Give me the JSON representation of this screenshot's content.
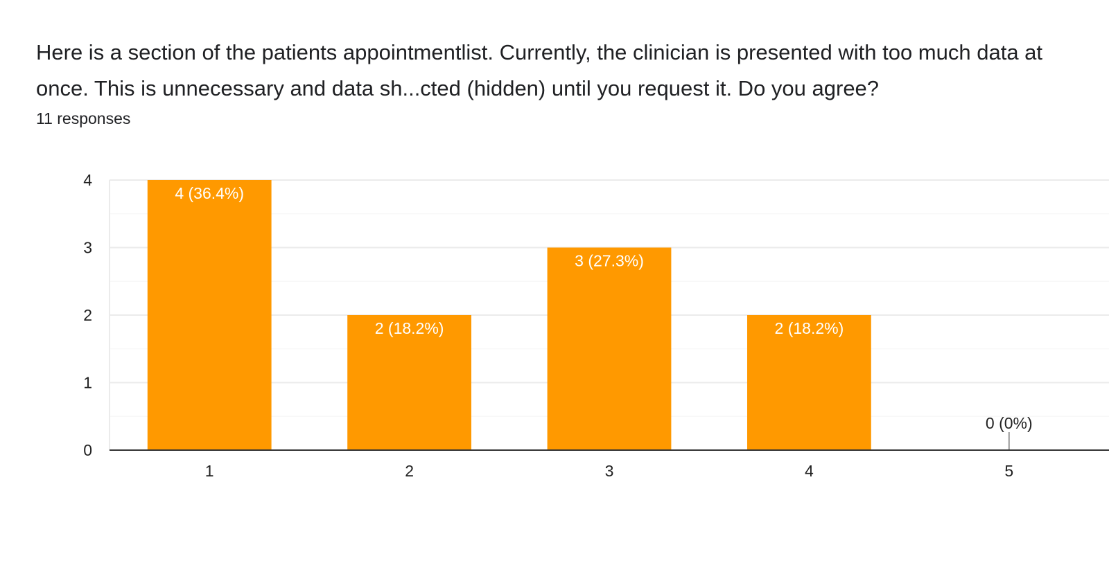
{
  "question": {
    "title": "Here is a section of the patients appointmentlist. Currently, the clinician is presented with too much data at once. This is unnecessary and data sh...cted (hidden) until you request it. Do you agree?",
    "responses": "11 responses"
  },
  "colors": {
    "bar": "#ff9900",
    "grid": "#ebebeb",
    "minor_grid": "#f5f5f5",
    "axis": "#333333",
    "label_inside": "#ffffff",
    "label_outside": "#222222",
    "zero_tick": "#999999"
  },
  "chart_data": {
    "type": "bar",
    "categories": [
      "1",
      "2",
      "3",
      "4",
      "5"
    ],
    "values": [
      4,
      2,
      3,
      2,
      0
    ],
    "data_labels": [
      "4 (36.4%)",
      "2 (18.2%)",
      "3 (27.3%)",
      "2 (18.2%)",
      "0 (0%)"
    ],
    "yticks": [
      "0",
      "1",
      "2",
      "3",
      "4"
    ],
    "ylim": [
      0,
      4
    ],
    "grid": true,
    "legend": "none",
    "title": "",
    "xlabel": "",
    "ylabel": ""
  }
}
